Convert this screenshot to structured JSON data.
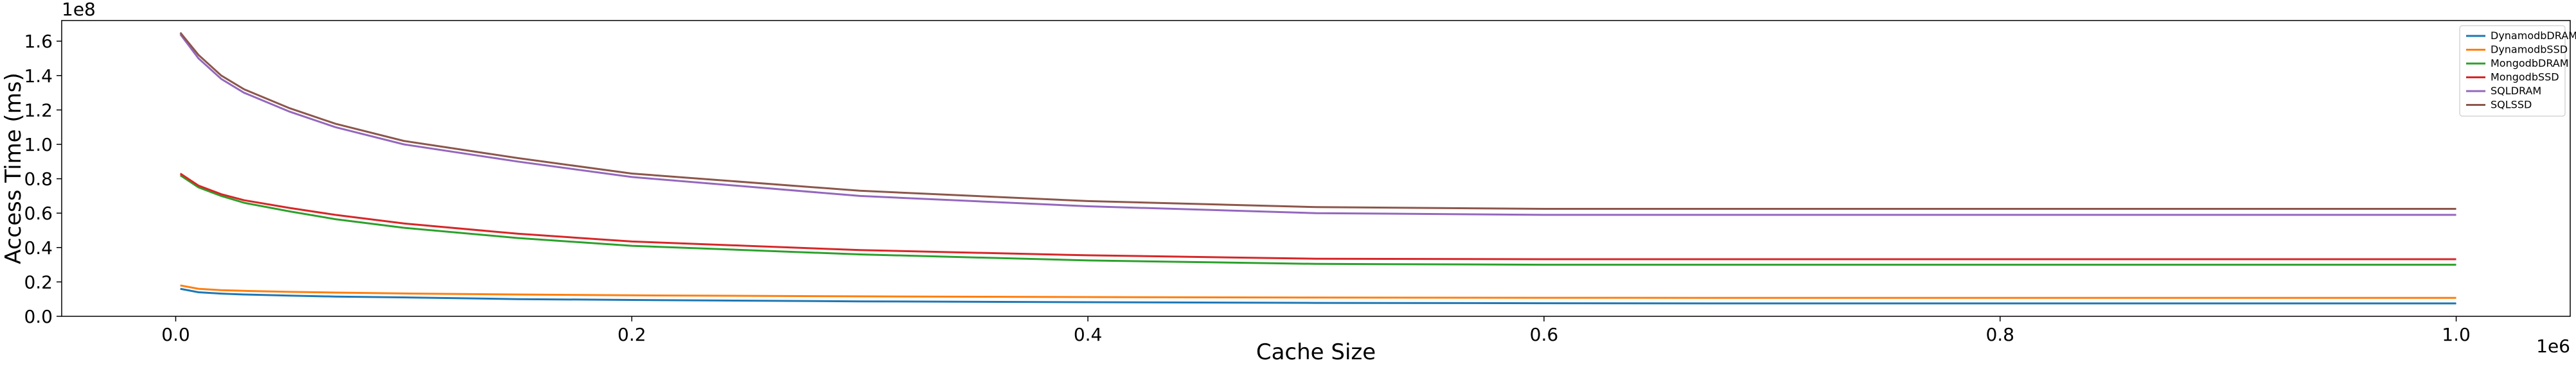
{
  "chart_data": {
    "type": "line",
    "title": "",
    "xlabel": "Cache Size",
    "ylabel": "Access Time (ms)",
    "x_offset_label": "1e6",
    "y_offset_label": "1e8",
    "xlim": [
      -0.05,
      1.05
    ],
    "ylim": [
      0,
      1.72
    ],
    "x_ticks": [
      0.0,
      0.2,
      0.4,
      0.6,
      0.8,
      1.0
    ],
    "x_tick_labels": [
      "0.0",
      "0.2",
      "0.4",
      "0.6",
      "0.8",
      "1.0"
    ],
    "y_ticks": [
      0.0,
      0.2,
      0.4,
      0.6,
      0.8,
      1.0,
      1.2,
      1.4,
      1.6
    ],
    "y_tick_labels": [
      "0.0",
      "0.2",
      "0.4",
      "0.6",
      "0.8",
      "1.0",
      "1.2",
      "1.4",
      "1.6"
    ],
    "grid": false,
    "legend_position": "top-right",
    "x": [
      0.002,
      0.01,
      0.02,
      0.03,
      0.05,
      0.07,
      0.1,
      0.15,
      0.2,
      0.3,
      0.4,
      0.5,
      0.6,
      0.7,
      0.8,
      0.9,
      1.0
    ],
    "series": [
      {
        "name": "DynamodbDRAM",
        "color": "#1f77b4",
        "values": [
          0.16,
          0.14,
          0.132,
          0.127,
          0.12,
          0.115,
          0.11,
          0.1,
          0.095,
          0.087,
          0.082,
          0.078,
          0.076,
          0.075,
          0.075,
          0.075,
          0.075
        ]
      },
      {
        "name": "DynamodbSSD",
        "color": "#ff7f0e",
        "values": [
          0.18,
          0.16,
          0.152,
          0.148,
          0.142,
          0.138,
          0.133,
          0.127,
          0.122,
          0.116,
          0.112,
          0.109,
          0.108,
          0.107,
          0.107,
          0.107,
          0.107
        ]
      },
      {
        "name": "MongodbDRAM",
        "color": "#2ca02c",
        "values": [
          0.82,
          0.75,
          0.7,
          0.66,
          0.61,
          0.565,
          0.515,
          0.455,
          0.41,
          0.36,
          0.325,
          0.305,
          0.3,
          0.3,
          0.3,
          0.3,
          0.3
        ]
      },
      {
        "name": "MongodbSSD",
        "color": "#d62728",
        "values": [
          0.83,
          0.76,
          0.71,
          0.675,
          0.63,
          0.59,
          0.54,
          0.48,
          0.435,
          0.385,
          0.355,
          0.335,
          0.332,
          0.332,
          0.332,
          0.332,
          0.332
        ]
      },
      {
        "name": "SQLDRAM",
        "color": "#9467bd",
        "values": [
          1.64,
          1.5,
          1.38,
          1.3,
          1.19,
          1.1,
          1.0,
          0.9,
          0.81,
          0.7,
          0.64,
          0.6,
          0.59,
          0.59,
          0.59,
          0.59,
          0.59
        ]
      },
      {
        "name": "SQLSSD",
        "color": "#8c564b",
        "values": [
          1.65,
          1.52,
          1.4,
          1.32,
          1.21,
          1.12,
          1.02,
          0.92,
          0.83,
          0.73,
          0.67,
          0.635,
          0.625,
          0.625,
          0.625,
          0.625,
          0.625
        ]
      }
    ]
  }
}
